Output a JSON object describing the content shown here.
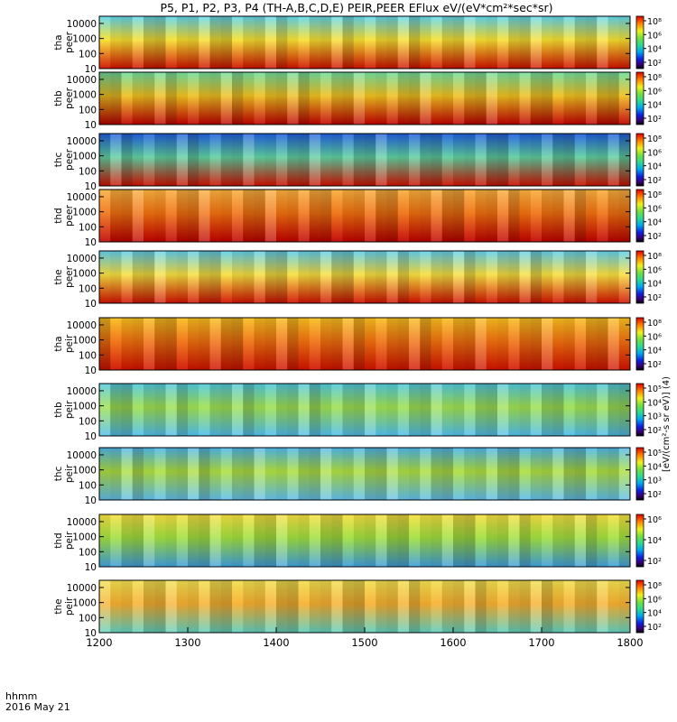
{
  "title": "P5, P1, P2, P3, P4 (TH-A,B,C,D,E) PEIR,PEER EFlux eV/(eV*cm²*sec*sr)",
  "time_axis": {
    "label_line1": "hhmm",
    "label_line2": "2016 May 21",
    "ticks": [
      "1200",
      "1300",
      "1400",
      "1500",
      "1600",
      "1700",
      "1800"
    ]
  },
  "colorbar_label": "[eV/(cm²-s sr eV)] (4)",
  "chart_data": [
    {
      "type": "heatmap",
      "ylabel": [
        "tha",
        "peer"
      ],
      "yticks": [
        "10000",
        "1000",
        "100",
        "10"
      ],
      "cbar_ticks": [
        "10⁸",
        "10⁶",
        "10⁴",
        "10²"
      ]
    },
    {
      "type": "heatmap",
      "ylabel": [
        "thb",
        "peer"
      ],
      "yticks": [
        "10000",
        "1000",
        "100",
        "10"
      ],
      "cbar_ticks": [
        "10⁸",
        "10⁶",
        "10⁴",
        "10²"
      ]
    },
    {
      "type": "heatmap",
      "ylabel": [
        "thc",
        "peer"
      ],
      "yticks": [
        "10000",
        "1000",
        "100",
        "10"
      ],
      "cbar_ticks": [
        "10⁸",
        "10⁶",
        "10⁴",
        "10²"
      ]
    },
    {
      "type": "heatmap",
      "ylabel": [
        "thd",
        "peer"
      ],
      "yticks": [
        "10000",
        "1000",
        "100",
        "10"
      ],
      "cbar_ticks": [
        "10⁸",
        "10⁶",
        "10⁴",
        "10²"
      ]
    },
    {
      "type": "heatmap",
      "ylabel": [
        "the",
        "peer"
      ],
      "yticks": [
        "10000",
        "1000",
        "100",
        "10"
      ],
      "cbar_ticks": [
        "10⁸",
        "10⁶",
        "10⁴",
        "10²"
      ]
    },
    {
      "type": "heatmap",
      "ylabel": [
        "tha",
        "peir"
      ],
      "yticks": [
        "10000",
        "1000",
        "100",
        "10"
      ],
      "cbar_ticks": [
        "10⁸",
        "10⁶",
        "10⁴",
        "10²"
      ]
    },
    {
      "type": "heatmap",
      "ylabel": [
        "thb",
        "peir"
      ],
      "yticks": [
        "10000",
        "1000",
        "100",
        "10"
      ],
      "cbar_ticks": [
        "10⁵",
        "10⁴",
        "10³",
        "10²"
      ]
    },
    {
      "type": "heatmap",
      "ylabel": [
        "thc",
        "peir"
      ],
      "yticks": [
        "10000",
        "1000",
        "100",
        "10"
      ],
      "cbar_ticks": [
        "10⁵",
        "10⁴",
        "10³",
        "10²"
      ]
    },
    {
      "type": "heatmap",
      "ylabel": [
        "thd",
        "peir"
      ],
      "yticks": [
        "10000",
        "1000",
        "100",
        "10"
      ],
      "cbar_ticks": [
        "10⁶",
        "10⁴",
        "10²"
      ]
    },
    {
      "type": "heatmap",
      "ylabel": [
        "the",
        "peir"
      ],
      "yticks": [
        "10000",
        "1000",
        "100",
        "10"
      ],
      "cbar_ticks": [
        "10⁸",
        "10⁶",
        "10⁴",
        "10²"
      ]
    }
  ]
}
